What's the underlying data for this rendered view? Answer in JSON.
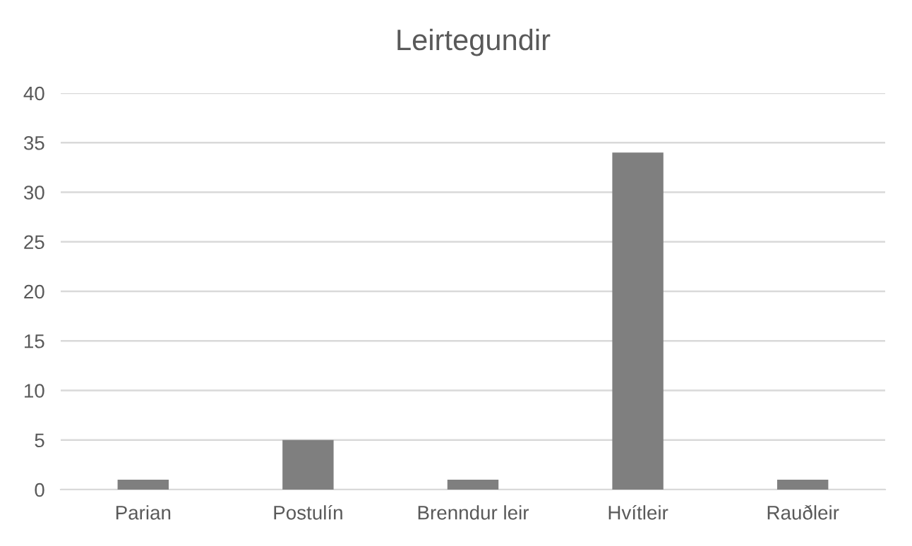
{
  "chart_data": {
    "type": "bar",
    "title": "Leirtegundir",
    "categories": [
      "Parian",
      "Postulín",
      "Brenndur leir",
      "Hvítleir",
      "Rauðleir"
    ],
    "values": [
      1,
      5,
      1,
      34,
      1
    ],
    "color": "#7f7f7f",
    "ylim": [
      0,
      40
    ],
    "yticks": [
      0,
      5,
      10,
      15,
      20,
      25,
      30,
      35,
      40
    ],
    "grid": "y",
    "legend": false
  }
}
